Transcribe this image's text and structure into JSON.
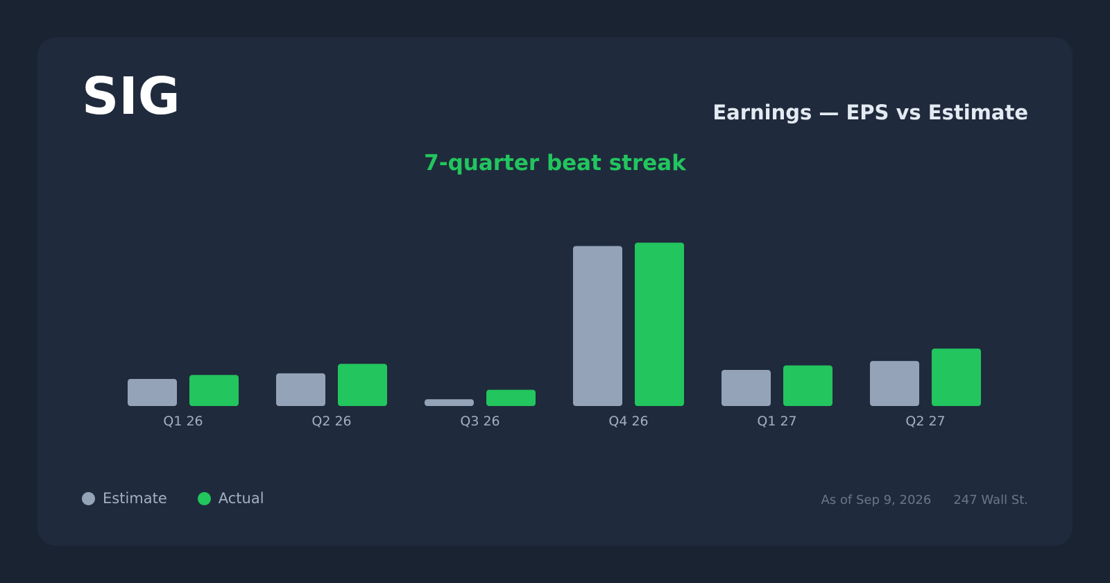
{
  "header": {
    "ticker": "SIG",
    "title": "Earnings — EPS vs Estimate",
    "headline": "7-quarter beat streak"
  },
  "colors": {
    "estimate": "#94a3b8",
    "actual": "#22c55e"
  },
  "legend": {
    "estimate_label": "Estimate",
    "actual_label": "Actual"
  },
  "footer": {
    "as_of": "As of Sep 9, 2026",
    "source": "247 Wall St."
  },
  "chart_data": {
    "type": "bar",
    "categories": [
      "Q1 26",
      "Q2 26",
      "Q3 26",
      "Q4 26",
      "Q1 27",
      "Q2 27"
    ],
    "series": [
      {
        "name": "Estimate",
        "values": [
          1.2,
          1.45,
          0.3,
          7.1,
          1.6,
          2.0
        ]
      },
      {
        "name": "Actual",
        "values": [
          1.38,
          1.87,
          0.72,
          7.25,
          1.8,
          2.55
        ]
      }
    ],
    "ylim": [
      0,
      7.3
    ],
    "grid": false,
    "legend_position": "bottom-left"
  }
}
